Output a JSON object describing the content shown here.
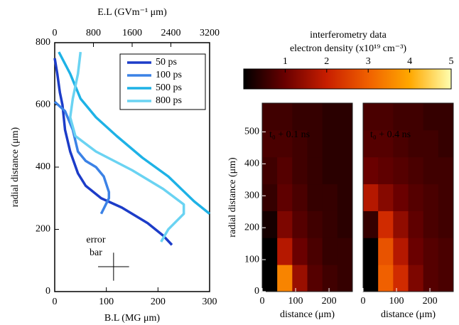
{
  "chart_data": [
    {
      "type": "line",
      "xlabel": "B.L (MG μm)",
      "x2label": "E.L (GVm⁻¹ μm)",
      "ylabel": "radial distance (μm)",
      "xlim": [
        0,
        300
      ],
      "xticks": [
        0,
        100,
        200,
        300
      ],
      "x2lim": [
        0,
        3200
      ],
      "x2ticks": [
        0,
        800,
        1600,
        2400,
        3200
      ],
      "ylim": [
        0,
        800
      ],
      "yticks": [
        0,
        200,
        400,
        600,
        800
      ],
      "legend": "upper right",
      "series": [
        {
          "name": "50 ps",
          "color": "#1c3cc8",
          "x": [
            0,
            5,
            10,
            15,
            20,
            30,
            45,
            60,
            90,
            130,
            180,
            210,
            227
          ],
          "values": [
            750,
            700,
            640,
            600,
            520,
            450,
            380,
            340,
            300,
            270,
            220,
            180,
            150
          ]
        },
        {
          "name": "100 ps",
          "color": "#3b82e6",
          "x": [
            0,
            20,
            35,
            45,
            60,
            80,
            95,
            105,
            105,
            90
          ],
          "values": [
            610,
            580,
            520,
            450,
            420,
            400,
            370,
            320,
            300,
            250
          ]
        },
        {
          "name": "500 ps",
          "color": "#1eb2e6",
          "x": [
            8,
            30,
            50,
            80,
            120,
            170,
            220,
            270,
            300
          ],
          "values": [
            770,
            700,
            620,
            560,
            500,
            430,
            370,
            290,
            250
          ]
        },
        {
          "name": "800 ps",
          "color": "#6ad3f2",
          "x": [
            50,
            45,
            35,
            30,
            40,
            80,
            150,
            210,
            250,
            250,
            220,
            206
          ],
          "values": [
            770,
            700,
            620,
            560,
            500,
            450,
            390,
            330,
            280,
            250,
            200,
            160
          ]
        }
      ],
      "annotation": [
        "error",
        "bar"
      ],
      "error_bar": {
        "x": 114,
        "y": 80,
        "xerr": 30,
        "yerr": 45
      }
    },
    {
      "type": "heatmap",
      "title": "interferometry data",
      "colorbar_label": "electron density (x10¹⁹ cm⁻³)",
      "zlim": [
        0,
        5
      ],
      "zticks": [
        1,
        2,
        3,
        4,
        5
      ],
      "colormap": [
        "#000000",
        "#6a0000",
        "#c81e00",
        "#f06000",
        "#ffa800",
        "#ffffb0"
      ],
      "ylabel": "radial distance (μm)",
      "xlim": [
        0,
        270
      ],
      "xticks": [
        0,
        100,
        200
      ],
      "ylim": [
        0,
        590
      ],
      "yticks": [
        0,
        100,
        200,
        300,
        400,
        500
      ],
      "panels": [
        {
          "label": "t₀ + 0.1 ns",
          "xlabel": "distance (μm)",
          "z": [
            [
              0,
              3.5,
              1.5,
              0.8,
              0.6,
              0.5
            ],
            [
              0,
              1.8,
              1.0,
              0.7,
              0.5,
              0.5
            ],
            [
              0.2,
              1.2,
              0.8,
              0.6,
              0.5,
              0.4
            ],
            [
              0.5,
              0.9,
              0.7,
              0.5,
              0.5,
              0.4
            ],
            [
              0.6,
              0.8,
              0.6,
              0.5,
              0.4,
              0.4
            ],
            [
              0.7,
              0.7,
              0.6,
              0.5,
              0.4,
              0.4
            ],
            [
              0.6,
              0.6,
              0.5,
              0.5,
              0.4,
              0.4
            ]
          ]
        },
        {
          "label": "t₀ + 0.4 ns",
          "xlabel": "distance (μm)",
          "z": [
            [
              0,
              3.0,
              2.2,
              1.2,
              0.8,
              0.7
            ],
            [
              0,
              2.8,
              1.8,
              1.0,
              0.8,
              0.7
            ],
            [
              0.5,
              2.2,
              1.4,
              0.9,
              0.7,
              0.6
            ],
            [
              1.8,
              1.3,
              1.0,
              0.8,
              0.7,
              0.6
            ],
            [
              1.0,
              0.9,
              0.8,
              0.7,
              0.6,
              0.6
            ],
            [
              0.8,
              0.8,
              0.7,
              0.6,
              0.6,
              0.5
            ],
            [
              0.7,
              0.7,
              0.6,
              0.6,
              0.5,
              0.5
            ]
          ]
        }
      ]
    }
  ]
}
